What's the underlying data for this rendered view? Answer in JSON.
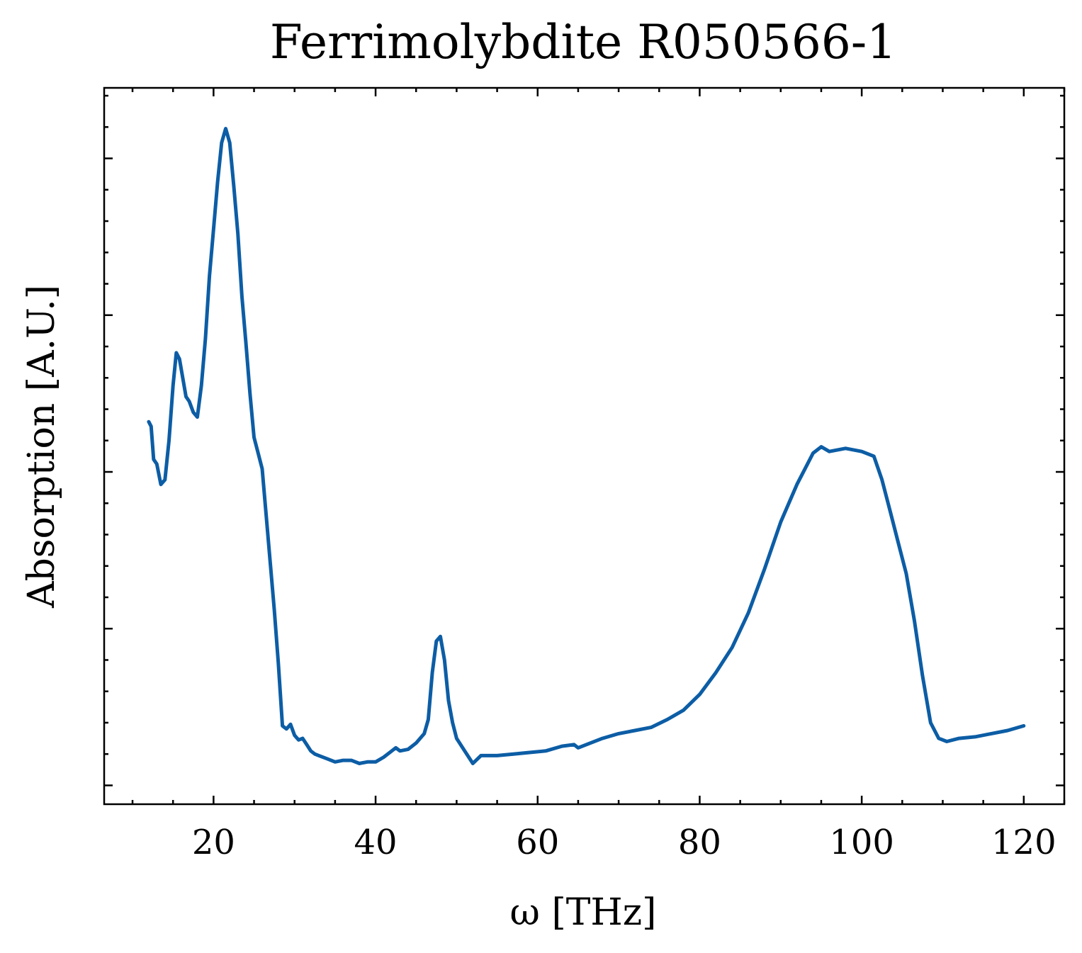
{
  "chart_data": {
    "type": "line",
    "title": "Ferrimolybdite R050566-1",
    "xlabel": "ω [THz]",
    "ylabel": "Absorption [A.U.]",
    "xlim": [
      6.5,
      125
    ],
    "ylim": [
      0.38,
      4.95
    ],
    "x_ticks": [
      20,
      40,
      60,
      80,
      100,
      120
    ],
    "x_tick_labels": [
      "20",
      "40",
      "60",
      "80",
      "100",
      "120"
    ],
    "x_minor_step": 5,
    "y_major_ticks": [
      0.5,
      1.5,
      2.5,
      3.5,
      4.5
    ],
    "y_minor_step": 0.2,
    "y_tick_labels_shown": false,
    "grid": false,
    "series": [
      {
        "color": "#0c5da5",
        "x": [
          12.0,
          12.3,
          12.6,
          13.0,
          13.5,
          14.0,
          14.5,
          15.0,
          15.4,
          15.8,
          16.2,
          16.6,
          17.0,
          17.5,
          18.0,
          18.5,
          19.0,
          19.5,
          20.0,
          20.5,
          21.0,
          21.5,
          22.0,
          22.5,
          23.0,
          23.5,
          24.0,
          24.5,
          25.0,
          25.5,
          26.0,
          26.5,
          27.0,
          27.5,
          28.0,
          28.5,
          29.0,
          29.5,
          30.0,
          30.5,
          31.0,
          31.5,
          32.0,
          32.5,
          33.0,
          34.0,
          35.0,
          36.0,
          37.0,
          38.0,
          39.0,
          40.0,
          41.0,
          42.0,
          42.5,
          43.0,
          44.0,
          45.0,
          46.0,
          46.5,
          47.0,
          47.5,
          48.0,
          48.5,
          49.0,
          49.5,
          50.0,
          51.0,
          52.0,
          53.0,
          55.0,
          57.0,
          59.0,
          61.0,
          63.0,
          64.5,
          65.0,
          66.0,
          68.0,
          70.0,
          72.0,
          74.0,
          76.0,
          78.0,
          80.0,
          82.0,
          84.0,
          86.0,
          88.0,
          90.0,
          92.0,
          94.0,
          95.0,
          96.0,
          98.0,
          100.0,
          101.5,
          102.5,
          103.5,
          104.5,
          105.5,
          106.5,
          107.5,
          108.5,
          109.5,
          110.5,
          112.0,
          114.0,
          116.0,
          118.0,
          120.0
        ],
        "values": [
          2.82,
          2.79,
          2.58,
          2.55,
          2.42,
          2.45,
          2.7,
          3.05,
          3.26,
          3.22,
          3.1,
          2.98,
          2.95,
          2.88,
          2.85,
          3.05,
          3.35,
          3.75,
          4.05,
          4.35,
          4.6,
          4.69,
          4.6,
          4.32,
          4.02,
          3.62,
          3.32,
          3.0,
          2.72,
          2.62,
          2.52,
          2.22,
          1.92,
          1.62,
          1.28,
          0.88,
          0.86,
          0.89,
          0.82,
          0.79,
          0.8,
          0.76,
          0.72,
          0.7,
          0.69,
          0.67,
          0.65,
          0.66,
          0.66,
          0.64,
          0.65,
          0.65,
          0.68,
          0.72,
          0.74,
          0.72,
          0.73,
          0.77,
          0.83,
          0.92,
          1.22,
          1.42,
          1.45,
          1.3,
          1.04,
          0.9,
          0.8,
          0.72,
          0.64,
          0.69,
          0.69,
          0.7,
          0.71,
          0.72,
          0.75,
          0.76,
          0.74,
          0.76,
          0.8,
          0.83,
          0.85,
          0.87,
          0.92,
          0.98,
          1.08,
          1.22,
          1.38,
          1.6,
          1.88,
          2.18,
          2.42,
          2.62,
          2.66,
          2.63,
          2.65,
          2.63,
          2.6,
          2.45,
          2.25,
          2.05,
          1.85,
          1.55,
          1.2,
          0.9,
          0.8,
          0.78,
          0.8,
          0.81,
          0.83,
          0.85,
          0.88
        ]
      }
    ]
  }
}
